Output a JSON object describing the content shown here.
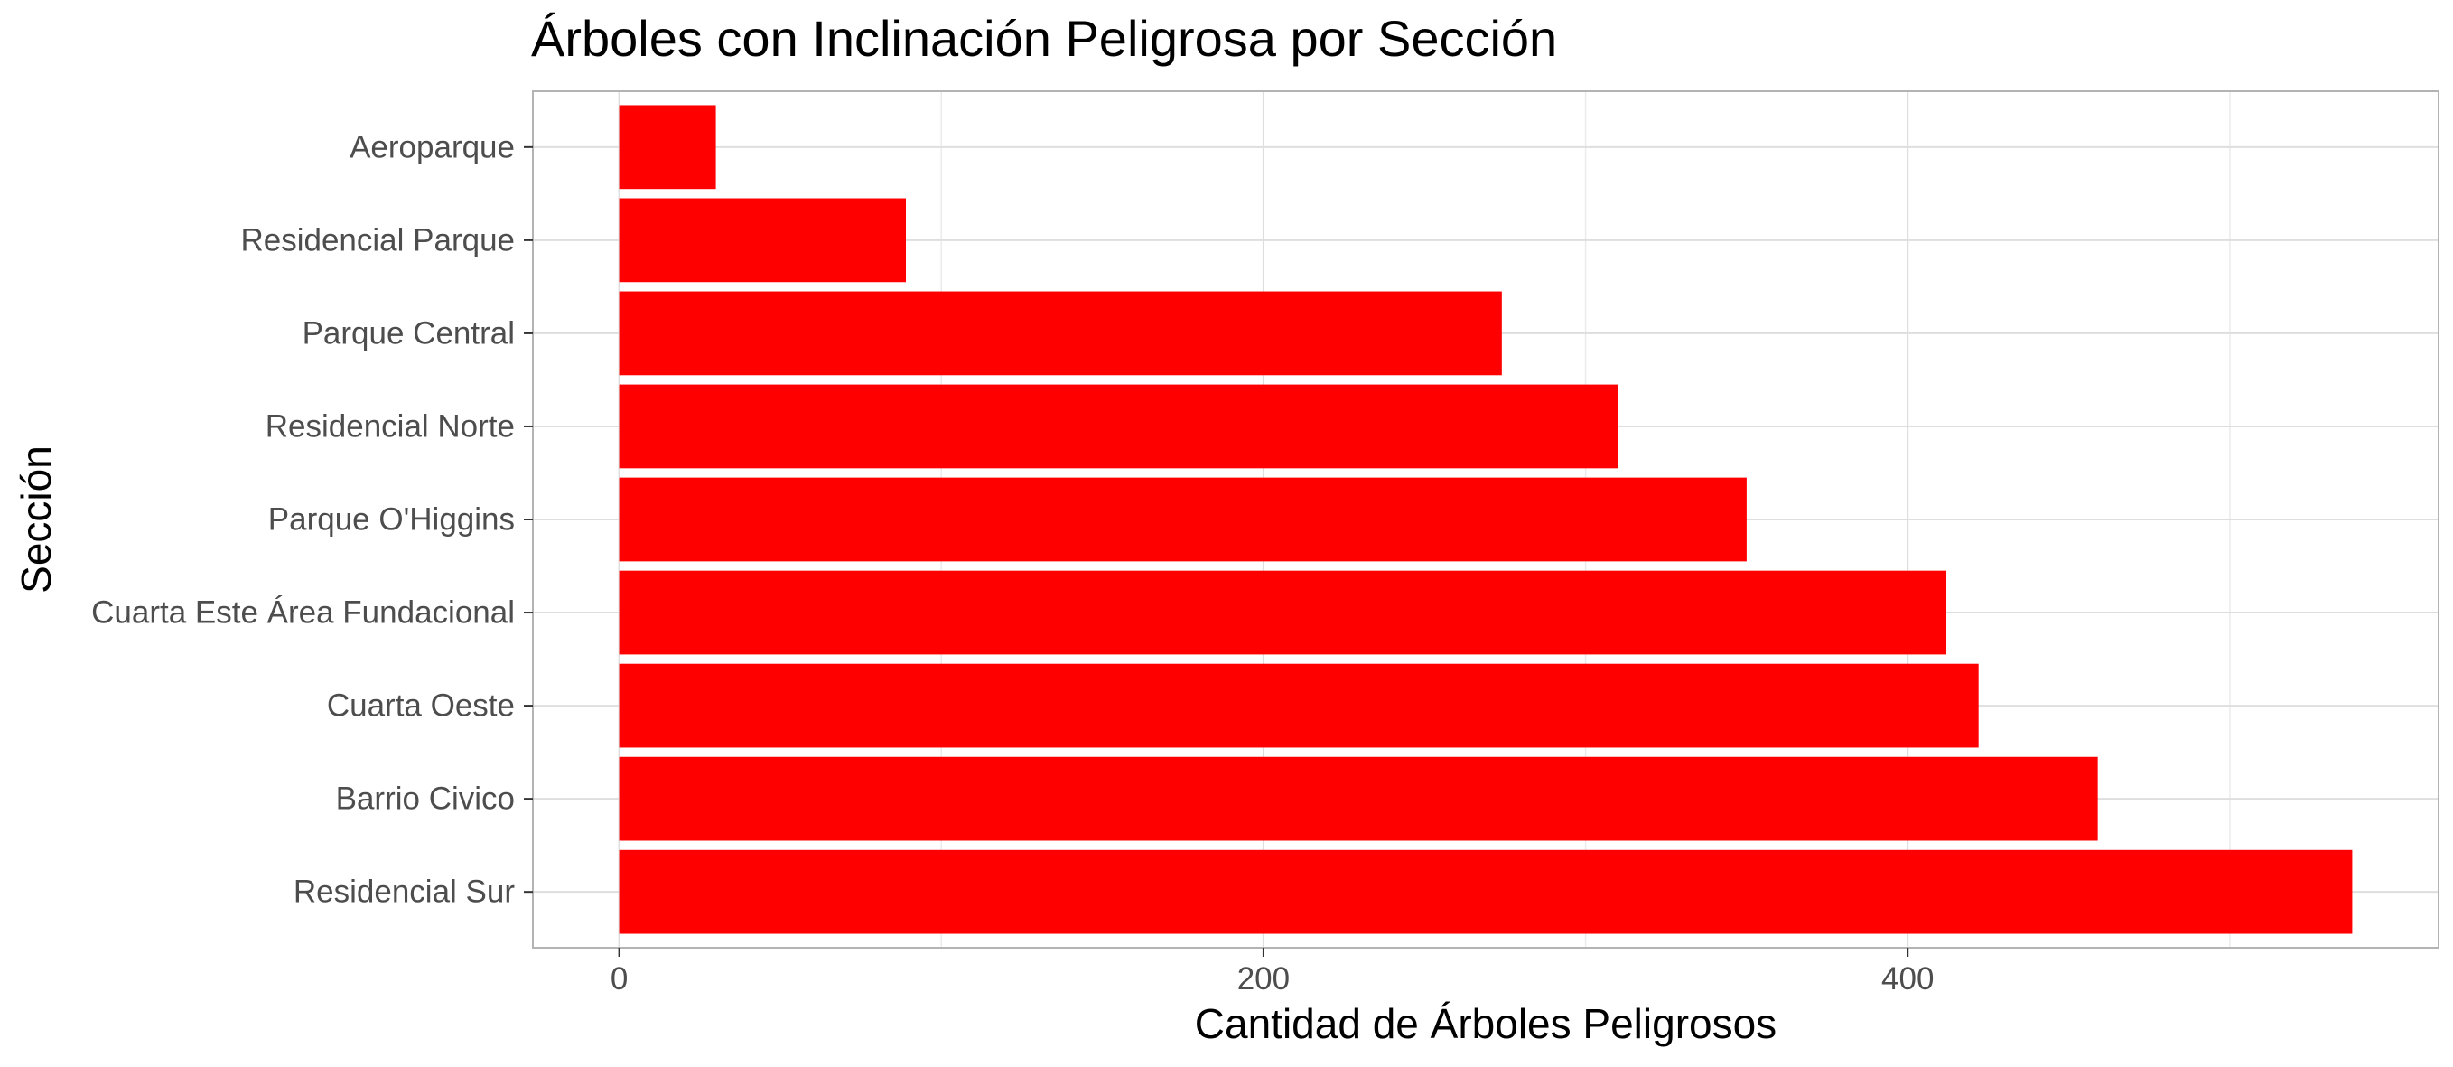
{
  "chart_data": {
    "type": "bar",
    "orientation": "horizontal",
    "title": "Árboles con Inclinación Peligrosa por Sección",
    "xlabel": "Cantidad de Árboles Peligrosos",
    "ylabel": "Sección",
    "categories": [
      "Aeroparque",
      "Residencial Parque",
      "Parque Central",
      "Residencial Norte",
      "Parque O'Higgins",
      "Cuarta Este Área Fundacional",
      "Cuarta Oeste",
      "Barrio Civico",
      "Residencial Sur"
    ],
    "values": [
      30,
      89,
      274,
      310,
      350,
      412,
      422,
      459,
      538
    ],
    "xlim": [
      -26.8,
      564.8
    ],
    "x_ticks": [
      "0",
      "200",
      "400"
    ],
    "x_tick_values": [
      0,
      200,
      400
    ],
    "x_minor_tick_values": [
      100,
      300,
      500
    ],
    "bar_color": "#ff0000",
    "grid": true,
    "legend": "none",
    "theme": "light"
  }
}
